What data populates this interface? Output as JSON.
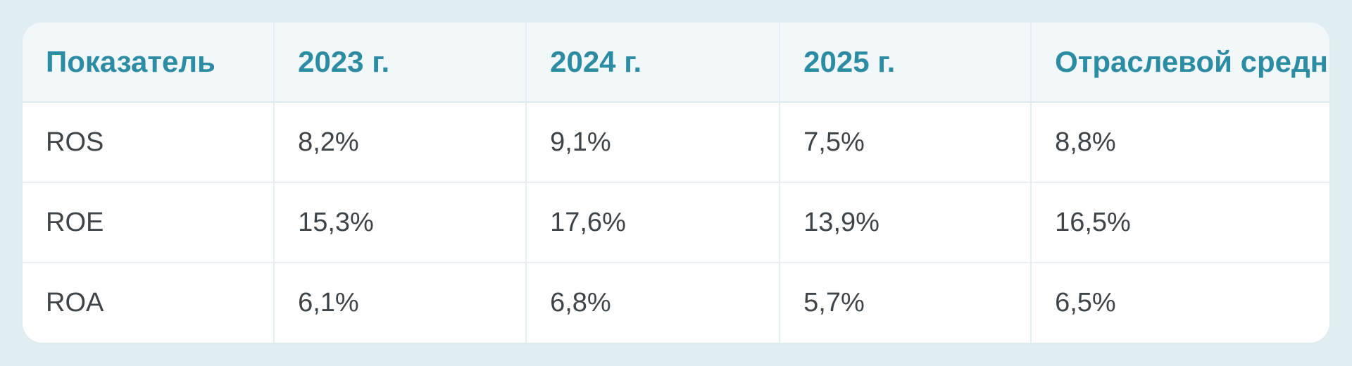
{
  "chart_data": {
    "type": "table",
    "title": "",
    "columns": [
      "Показатель",
      "2023 г.",
      "2024 г.",
      "2025 г.",
      "Отраслевой средний"
    ],
    "rows": [
      {
        "label": "ROS",
        "values": [
          "8,2%",
          "9,1%",
          "7,5%",
          "8,8%"
        ]
      },
      {
        "label": "ROE",
        "values": [
          "15,3%",
          "17,6%",
          "13,9%",
          "16,5%"
        ]
      },
      {
        "label": "ROA",
        "values": [
          "6,1%",
          "6,8%",
          "5,7%",
          "6,5%"
        ]
      }
    ]
  },
  "theme": {
    "page_background": "#e1eef1",
    "header_background": "#f2f7fa",
    "row_background": "#ffffff",
    "header_text_color": "#2b8ca3",
    "body_text_color": "#3f4449",
    "divider_color": "#e4eef2"
  }
}
